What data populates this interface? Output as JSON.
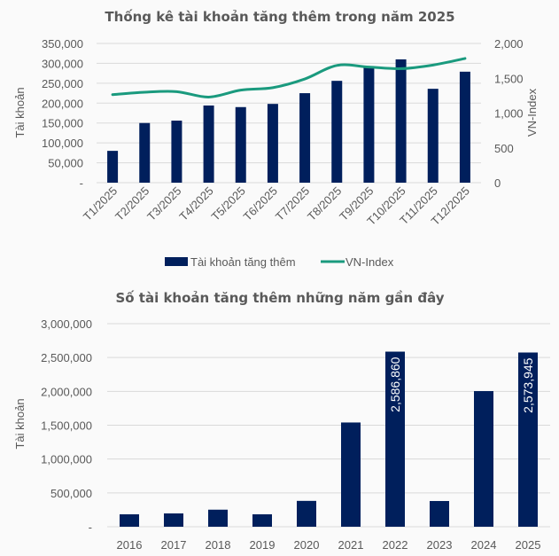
{
  "chart_data": [
    {
      "type": "bar",
      "combo": "bar+line",
      "title": "Thống kê tài khoản tăng thêm trong năm 2025",
      "categories": [
        "T1/2025",
        "T2/2025",
        "T3/2025",
        "T4/2025",
        "T5/2025",
        "T6/2025",
        "T7/2025",
        "T8/2025",
        "T9/2025",
        "T10/2025",
        "T11/2025",
        "T12/2025"
      ],
      "series": [
        {
          "name": "Tài khoản tăng thêm",
          "type": "bar",
          "axis": "left",
          "color": "#001f5c",
          "values": [
            80000,
            150000,
            156000,
            194000,
            190000,
            198000,
            225000,
            256000,
            290000,
            310000,
            236000,
            279000
          ]
        },
        {
          "name": "VN-Index",
          "type": "line",
          "axis": "right",
          "color": "#1a9a7e",
          "values": [
            1265,
            1300,
            1308,
            1230,
            1330,
            1365,
            1490,
            1684,
            1661,
            1638,
            1690,
            1784
          ]
        }
      ],
      "xlabel": "",
      "ylabel": "Tài khoản",
      "y2label": "VN-Index",
      "ylim": [
        0,
        350000
      ],
      "y2lim": [
        0,
        2000
      ],
      "yticks": [
        "-",
        "50,000",
        "100,000",
        "150,000",
        "200,000",
        "250,000",
        "300,000",
        "350,000"
      ],
      "y2ticks": [
        "0",
        "500",
        "1,000",
        "1,500",
        "2,000"
      ],
      "grid": true,
      "legend": "bottom",
      "legend_entries": [
        "Tài khoản tăng thêm",
        "VN-Index"
      ]
    },
    {
      "type": "bar",
      "title": "Số tài khoản tăng thêm những năm gần đây",
      "categories": [
        "2016",
        "2017",
        "2018",
        "2019",
        "2020",
        "2021",
        "2022",
        "2023",
        "2024",
        "2025"
      ],
      "series": [
        {
          "name": "Tài khoản tăng thêm",
          "color": "#001f5c",
          "values": [
            184000,
            197000,
            252000,
            184000,
            382000,
            1540000,
            2586860,
            380000,
            2004000,
            2573945
          ]
        }
      ],
      "data_labels": [
        {
          "category": "2022",
          "text": "2,586,860"
        },
        {
          "category": "2025",
          "text": "2,573,945"
        }
      ],
      "xlabel": "",
      "ylabel": "Tài khoản",
      "ylim": [
        0,
        3000000
      ],
      "yticks": [
        "-",
        "500,000",
        "1,000,000",
        "1,500,000",
        "2,000,000",
        "2,500,000",
        "3,000,000"
      ],
      "grid": true,
      "legend": "none"
    }
  ]
}
